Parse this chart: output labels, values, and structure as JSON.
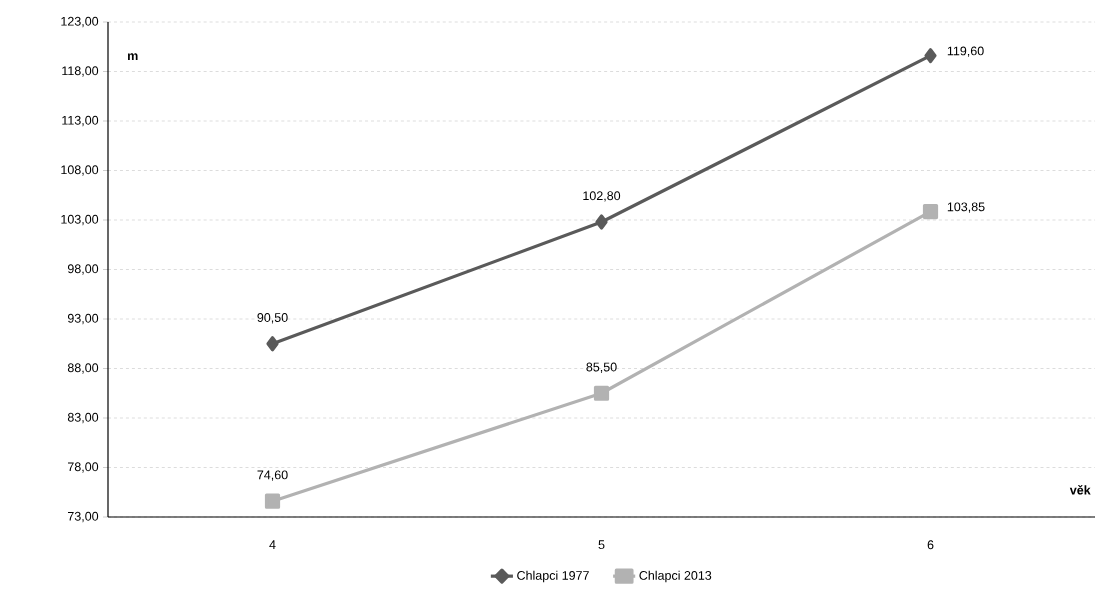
{
  "chart_data": {
    "type": "line",
    "categories": [
      "4",
      "5",
      "6"
    ],
    "series": [
      {
        "name": "Chlapci 1977",
        "color": "#5a5a5a",
        "marker": "diamond",
        "values": [
          90.5,
          102.8,
          119.6
        ],
        "value_labels": [
          "90,50",
          "102,80",
          "119,60"
        ]
      },
      {
        "name": "Chlapci 2013",
        "color": "#b2b2b2",
        "marker": "square",
        "values": [
          74.6,
          85.5,
          103.85
        ],
        "value_labels": [
          "74,60",
          "85,50",
          "103,85"
        ]
      }
    ],
    "xlabel": "věk",
    "ylabel": "m",
    "ylim": [
      73,
      123
    ],
    "yticks": [
      {
        "value": 73,
        "label": "73,00"
      },
      {
        "value": 78,
        "label": "78,00"
      },
      {
        "value": 83,
        "label": "83,00"
      },
      {
        "value": 88,
        "label": "88,00"
      },
      {
        "value": 93,
        "label": "93,00"
      },
      {
        "value": 98,
        "label": "98,00"
      },
      {
        "value": 103,
        "label": "103,00"
      },
      {
        "value": 108,
        "label": "108,00"
      },
      {
        "value": 113,
        "label": "113,00"
      },
      {
        "value": 118,
        "label": "118,00"
      },
      {
        "value": 123,
        "label": "123,00"
      }
    ],
    "grid": "y",
    "legend": "bottom",
    "line_style": "solid"
  }
}
